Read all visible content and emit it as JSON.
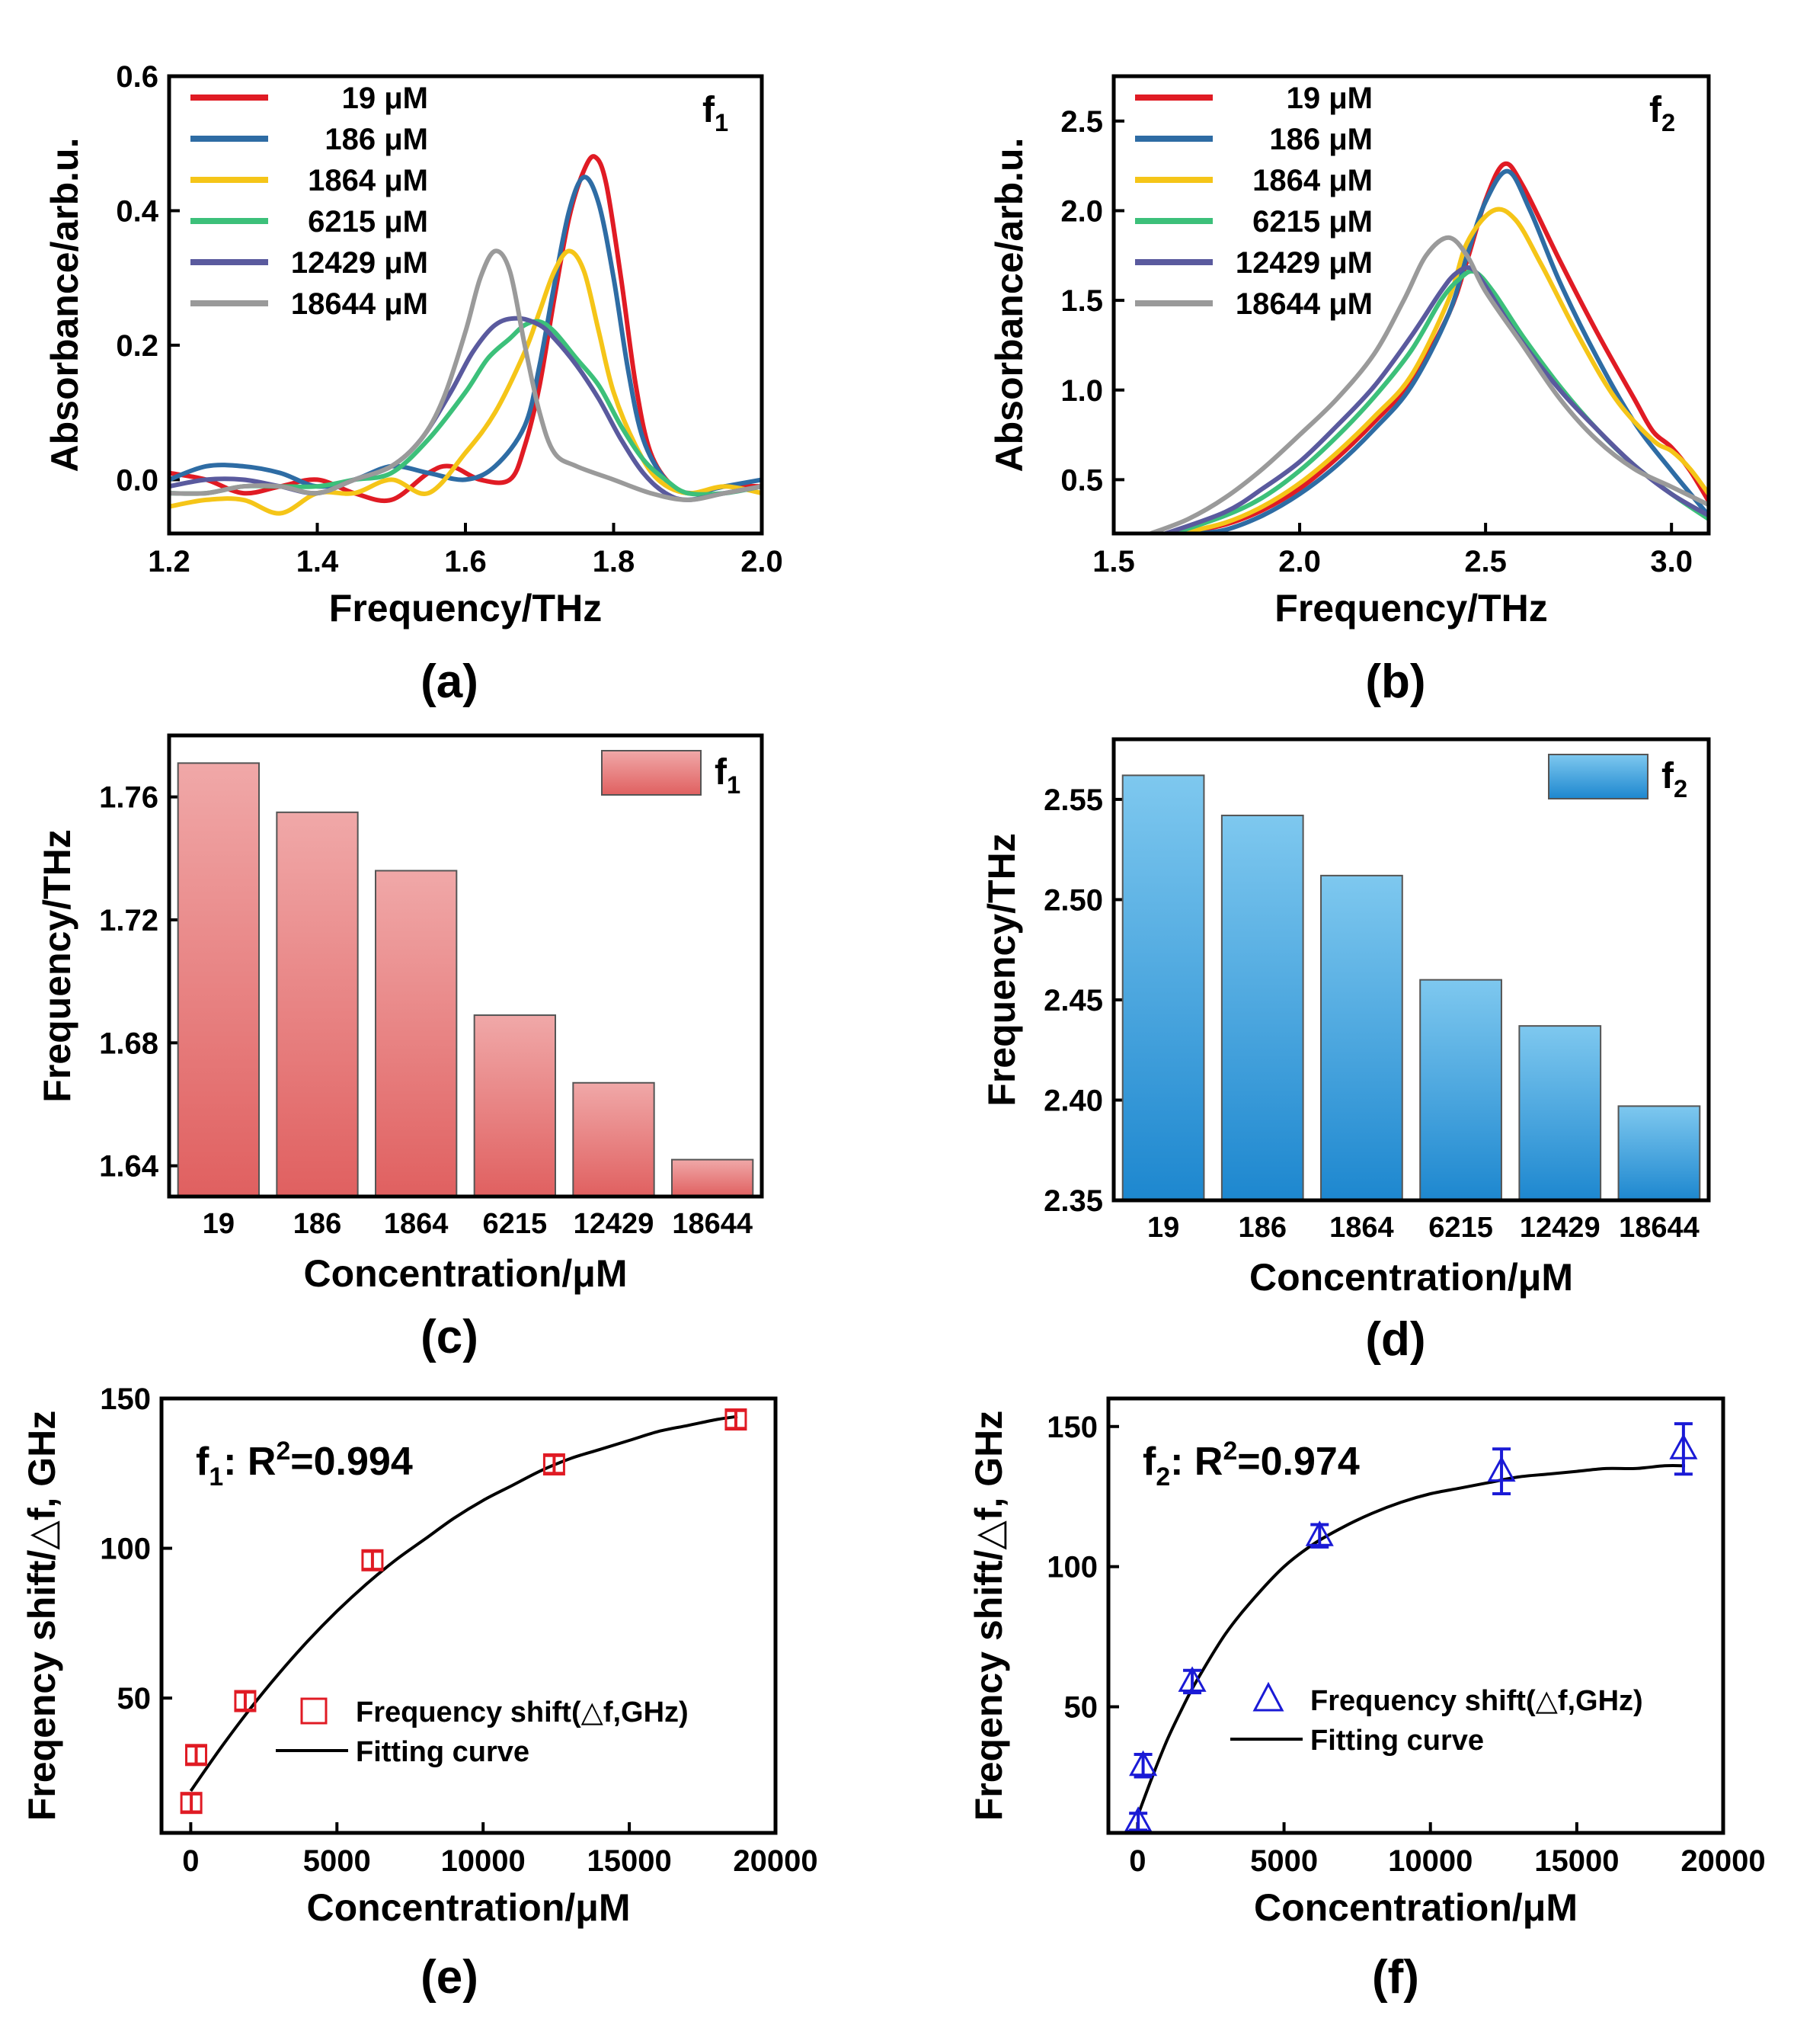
{
  "chart_data": [
    {
      "panel": "(a)",
      "type": "line",
      "xlabel": "Frequency/THz",
      "ylabel": "Absorbance/arb.u.",
      "annotation": "f",
      "annotation_sub": "1",
      "xlim": [
        1.2,
        2.0
      ],
      "ylim": [
        -0.08,
        0.6
      ],
      "xticks": [
        1.2,
        1.4,
        1.6,
        1.8,
        2.0
      ],
      "xtick_labels": [
        "1.2",
        "1.4",
        "1.6",
        "1.8",
        "2.0"
      ],
      "yticks": [
        0.0,
        0.2,
        0.4,
        0.6
      ],
      "ytick_labels": [
        "0.0",
        "0.2",
        "0.4",
        "0.6"
      ],
      "legend_position": "top-left",
      "series": [
        {
          "name": "19 μM",
          "color": "#e01b24",
          "x": [
            1.2,
            1.25,
            1.3,
            1.35,
            1.4,
            1.45,
            1.5,
            1.55,
            1.58,
            1.62,
            1.66,
            1.68,
            1.7,
            1.72,
            1.74,
            1.76,
            1.775,
            1.79,
            1.81,
            1.83,
            1.85,
            1.88,
            1.91,
            1.95,
            2.0
          ],
          "y": [
            0.01,
            0.0,
            -0.02,
            -0.01,
            0.0,
            -0.02,
            -0.03,
            0.01,
            0.02,
            0.0,
            0.0,
            0.05,
            0.14,
            0.27,
            0.39,
            0.46,
            0.48,
            0.44,
            0.3,
            0.14,
            0.04,
            -0.01,
            -0.02,
            -0.01,
            -0.01
          ]
        },
        {
          "name": "186 μM",
          "color": "#2e6ca4",
          "x": [
            1.2,
            1.25,
            1.3,
            1.35,
            1.4,
            1.45,
            1.5,
            1.55,
            1.6,
            1.64,
            1.68,
            1.7,
            1.72,
            1.74,
            1.76,
            1.78,
            1.8,
            1.82,
            1.84,
            1.87,
            1.9,
            1.95,
            2.0
          ],
          "y": [
            0.0,
            0.02,
            0.02,
            0.01,
            -0.01,
            0.0,
            0.02,
            0.01,
            0.0,
            0.02,
            0.08,
            0.17,
            0.29,
            0.4,
            0.45,
            0.41,
            0.3,
            0.16,
            0.06,
            0.0,
            -0.02,
            -0.01,
            0.0
          ]
        },
        {
          "name": "1864 μM",
          "color": "#f5c518",
          "x": [
            1.2,
            1.25,
            1.3,
            1.35,
            1.4,
            1.45,
            1.5,
            1.55,
            1.6,
            1.64,
            1.68,
            1.7,
            1.72,
            1.74,
            1.76,
            1.78,
            1.8,
            1.83,
            1.86,
            1.9,
            1.95,
            2.0
          ],
          "y": [
            -0.04,
            -0.03,
            -0.03,
            -0.05,
            -0.02,
            -0.02,
            0.0,
            -0.02,
            0.04,
            0.1,
            0.19,
            0.25,
            0.31,
            0.34,
            0.31,
            0.22,
            0.13,
            0.05,
            0.0,
            -0.02,
            -0.01,
            -0.02
          ]
        },
        {
          "name": "6215 μM",
          "color": "#3cc07a",
          "x": [
            1.2,
            1.25,
            1.3,
            1.35,
            1.4,
            1.45,
            1.5,
            1.55,
            1.6,
            1.63,
            1.66,
            1.68,
            1.7,
            1.72,
            1.75,
            1.78,
            1.81,
            1.84,
            1.87,
            1.9,
            1.95,
            2.0
          ],
          "y": [
            -0.02,
            -0.02,
            -0.01,
            -0.01,
            -0.01,
            0.0,
            0.01,
            0.06,
            0.13,
            0.18,
            0.21,
            0.23,
            0.235,
            0.22,
            0.18,
            0.14,
            0.08,
            0.03,
            0.0,
            -0.02,
            -0.02,
            -0.01
          ]
        },
        {
          "name": "12429 μM",
          "color": "#5a5a9e",
          "x": [
            1.2,
            1.25,
            1.3,
            1.35,
            1.4,
            1.45,
            1.5,
            1.54,
            1.58,
            1.61,
            1.64,
            1.67,
            1.7,
            1.72,
            1.75,
            1.78,
            1.81,
            1.84,
            1.87,
            1.9,
            1.95,
            2.0
          ],
          "y": [
            -0.01,
            0.0,
            0.0,
            -0.01,
            -0.02,
            0.0,
            0.02,
            0.06,
            0.13,
            0.19,
            0.23,
            0.24,
            0.23,
            0.21,
            0.17,
            0.12,
            0.06,
            0.01,
            -0.02,
            -0.03,
            -0.02,
            -0.01
          ]
        },
        {
          "name": "18644 μM",
          "color": "#9a9a9a",
          "x": [
            1.2,
            1.25,
            1.3,
            1.35,
            1.4,
            1.45,
            1.5,
            1.54,
            1.57,
            1.6,
            1.62,
            1.64,
            1.66,
            1.68,
            1.7,
            1.72,
            1.75,
            1.8,
            1.85,
            1.9,
            1.95,
            2.0
          ],
          "y": [
            -0.02,
            -0.02,
            -0.01,
            -0.01,
            -0.02,
            0.0,
            0.02,
            0.06,
            0.12,
            0.22,
            0.3,
            0.34,
            0.31,
            0.2,
            0.1,
            0.04,
            0.02,
            0.0,
            -0.02,
            -0.03,
            -0.02,
            -0.01
          ]
        }
      ]
    },
    {
      "panel": "(b)",
      "type": "line",
      "xlabel": "Frequency/THz",
      "ylabel": "Absorbance/arb.u.",
      "annotation": "f",
      "annotation_sub": "2",
      "xlim": [
        1.5,
        3.1
      ],
      "ylim": [
        0.2,
        2.75
      ],
      "xticks": [
        1.5,
        2.0,
        2.5,
        3.0
      ],
      "xtick_labels": [
        "1.5",
        "2.0",
        "2.5",
        "3.0"
      ],
      "yticks": [
        0.5,
        1.0,
        1.5,
        2.0,
        2.5
      ],
      "ytick_labels": [
        "0.5",
        "1.0",
        "1.5",
        "2.0",
        "2.5"
      ],
      "legend_position": "top-left",
      "series": [
        {
          "name": "19 μM",
          "color": "#e01b24",
          "x": [
            1.68,
            1.8,
            1.9,
            2.0,
            2.1,
            2.2,
            2.3,
            2.4,
            2.45,
            2.5,
            2.55,
            2.6,
            2.7,
            2.8,
            2.9,
            2.95,
            3.0,
            3.05,
            3.1
          ],
          "y": [
            0.2,
            0.25,
            0.33,
            0.45,
            0.62,
            0.82,
            1.05,
            1.42,
            1.72,
            2.06,
            2.26,
            2.14,
            1.72,
            1.32,
            0.95,
            0.77,
            0.68,
            0.55,
            0.38
          ]
        },
        {
          "name": "186 μM",
          "color": "#2e6ca4",
          "x": [
            1.72,
            1.8,
            1.9,
            2.0,
            2.1,
            2.2,
            2.3,
            2.4,
            2.45,
            2.5,
            2.56,
            2.62,
            2.7,
            2.8,
            2.9,
            3.0,
            3.1
          ],
          "y": [
            0.2,
            0.22,
            0.3,
            0.42,
            0.58,
            0.78,
            1.02,
            1.42,
            1.75,
            2.05,
            2.22,
            2.0,
            1.6,
            1.18,
            0.82,
            0.55,
            0.3
          ]
        },
        {
          "name": "1864 μM",
          "color": "#f5c518",
          "x": [
            1.68,
            1.8,
            1.9,
            2.0,
            2.1,
            2.2,
            2.3,
            2.4,
            2.45,
            2.52,
            2.58,
            2.65,
            2.75,
            2.85,
            2.95,
            3.0,
            3.05,
            3.1
          ],
          "y": [
            0.2,
            0.26,
            0.35,
            0.48,
            0.65,
            0.85,
            1.08,
            1.5,
            1.82,
            2.0,
            1.95,
            1.7,
            1.3,
            0.95,
            0.72,
            0.66,
            0.56,
            0.42
          ]
        },
        {
          "name": "6215 μM",
          "color": "#3cc07a",
          "x": [
            1.66,
            1.8,
            1.9,
            2.0,
            2.1,
            2.2,
            2.3,
            2.38,
            2.43,
            2.47,
            2.52,
            2.6,
            2.7,
            2.8,
            2.9,
            3.0,
            3.1
          ],
          "y": [
            0.2,
            0.3,
            0.4,
            0.55,
            0.74,
            0.96,
            1.22,
            1.5,
            1.62,
            1.66,
            1.55,
            1.3,
            1.02,
            0.78,
            0.58,
            0.42,
            0.28
          ]
        },
        {
          "name": "12429 μM",
          "color": "#5a5a9e",
          "x": [
            1.64,
            1.8,
            1.9,
            2.0,
            2.1,
            2.2,
            2.3,
            2.38,
            2.42,
            2.46,
            2.5,
            2.58,
            2.7,
            2.8,
            2.9,
            3.0,
            3.1
          ],
          "y": [
            0.2,
            0.32,
            0.45,
            0.6,
            0.8,
            1.02,
            1.3,
            1.55,
            1.65,
            1.68,
            1.58,
            1.32,
            1.0,
            0.78,
            0.58,
            0.42,
            0.3
          ]
        },
        {
          "name": "18644 μM",
          "color": "#9a9a9a",
          "x": [
            1.6,
            1.7,
            1.8,
            1.9,
            2.0,
            2.1,
            2.2,
            2.28,
            2.34,
            2.4,
            2.45,
            2.5,
            2.6,
            2.7,
            2.8,
            2.9,
            3.0,
            3.1
          ],
          "y": [
            0.2,
            0.28,
            0.4,
            0.56,
            0.75,
            0.95,
            1.2,
            1.5,
            1.75,
            1.85,
            1.75,
            1.55,
            1.25,
            0.95,
            0.72,
            0.56,
            0.46,
            0.36
          ]
        }
      ]
    },
    {
      "panel": "(c)",
      "type": "bar",
      "xlabel": "Concentration/μM",
      "ylabel": "Frequency/THz",
      "legend": "f",
      "legend_sub": "1",
      "ylim": [
        1.63,
        1.78
      ],
      "yticks": [
        1.64,
        1.68,
        1.72,
        1.76
      ],
      "ytick_labels": [
        "1.64",
        "1.68",
        "1.72",
        "1.76"
      ],
      "categories": [
        "19",
        "186",
        "1864",
        "6215",
        "12429",
        "18644"
      ],
      "values": [
        1.771,
        1.755,
        1.736,
        1.689,
        1.667,
        1.642
      ],
      "color": "#e06a6a"
    },
    {
      "panel": "(d)",
      "type": "bar",
      "xlabel": "Concentration/μM",
      "ylabel": "Frequency/THz",
      "legend": "f",
      "legend_sub": "2",
      "ylim": [
        2.35,
        2.58
      ],
      "yticks": [
        2.35,
        2.4,
        2.45,
        2.5,
        2.55
      ],
      "ytick_labels": [
        "2.35",
        "2.40",
        "2.45",
        "2.50",
        "2.55"
      ],
      "categories": [
        "19",
        "186",
        "1864",
        "6215",
        "12429",
        "18644"
      ],
      "values": [
        2.562,
        2.542,
        2.512,
        2.46,
        2.437,
        2.397
      ],
      "color": "#2a93d5"
    },
    {
      "panel": "(e)",
      "type": "scatter",
      "xlabel": "Concentration/μM",
      "ylabel": "Freqency shift/△f, GHz",
      "annotation": "f",
      "annotation_sub": "1",
      "annotation_rest": ": R",
      "annotation_sup": "2",
      "annotation_value": "=0.994",
      "xlim": [
        -1000,
        20000
      ],
      "ylim": [
        5,
        150
      ],
      "xticks": [
        0,
        5000,
        10000,
        15000,
        20000
      ],
      "xtick_labels": [
        "0",
        "5000",
        "10000",
        "15000",
        "20000"
      ],
      "yticks": [
        50,
        100,
        150
      ],
      "ytick_labels": [
        "50",
        "100",
        "150"
      ],
      "legend_position": "center-right",
      "series": [
        {
          "name": "Frequency shift(△f,GHz)",
          "marker": "square",
          "color": "#e01b24",
          "x": [
            19,
            186,
            1864,
            6215,
            12429,
            18644
          ],
          "y": [
            15,
            31,
            49,
            96,
            128,
            143
          ],
          "err": [
            3,
            3,
            3,
            3,
            3,
            3
          ]
        },
        {
          "name": "Fitting curve",
          "marker": "line",
          "color": "#000000",
          "x": [
            0,
            1000,
            2000,
            3000,
            4000,
            5000,
            6000,
            7000,
            8000,
            9000,
            10000,
            11000,
            12000,
            13000,
            14000,
            15000,
            16000,
            17000,
            18000,
            18700
          ],
          "y": [
            19,
            33,
            46,
            58,
            69,
            79,
            88,
            96,
            103,
            110,
            116,
            121,
            126,
            130,
            133,
            136,
            139,
            141,
            143,
            144
          ]
        }
      ]
    },
    {
      "panel": "(f)",
      "type": "scatter",
      "xlabel": "Concentration/μM",
      "ylabel": "Freqency shift/△f, GHz",
      "annotation": "f",
      "annotation_sub": "2",
      "annotation_rest": ": R",
      "annotation_sup": "2",
      "annotation_value": "=0.974",
      "xlim": [
        -1000,
        20000
      ],
      "ylim": [
        5,
        160
      ],
      "xticks": [
        0,
        5000,
        10000,
        15000,
        20000
      ],
      "xtick_labels": [
        "0",
        "5000",
        "10000",
        "15000",
        "20000"
      ],
      "yticks": [
        50,
        100,
        150
      ],
      "ytick_labels": [
        "50",
        "100",
        "150"
      ],
      "legend_position": "center-right",
      "series": [
        {
          "name": "Frequency shift(△f,GHz)",
          "marker": "triangle",
          "color": "#1a1ad6",
          "x": [
            19,
            186,
            1864,
            6215,
            12429,
            18644
          ],
          "y": [
            9,
            29,
            59,
            111,
            134,
            142
          ],
          "err": [
            3,
            4,
            4,
            4,
            8,
            9
          ]
        },
        {
          "name": "Fitting curve",
          "marker": "line",
          "color": "#000000",
          "x": [
            0,
            500,
            1000,
            1500,
            2000,
            3000,
            4000,
            5000,
            6000,
            7000,
            8000,
            9000,
            10000,
            11000,
            12000,
            13000,
            14000,
            15000,
            16000,
            17000,
            18000,
            18700
          ],
          "y": [
            11,
            25,
            38,
            49,
            59,
            76,
            89,
            100,
            108,
            114,
            119,
            123,
            126,
            128,
            130,
            132,
            133,
            134,
            135,
            135,
            136,
            136
          ]
        }
      ]
    }
  ]
}
